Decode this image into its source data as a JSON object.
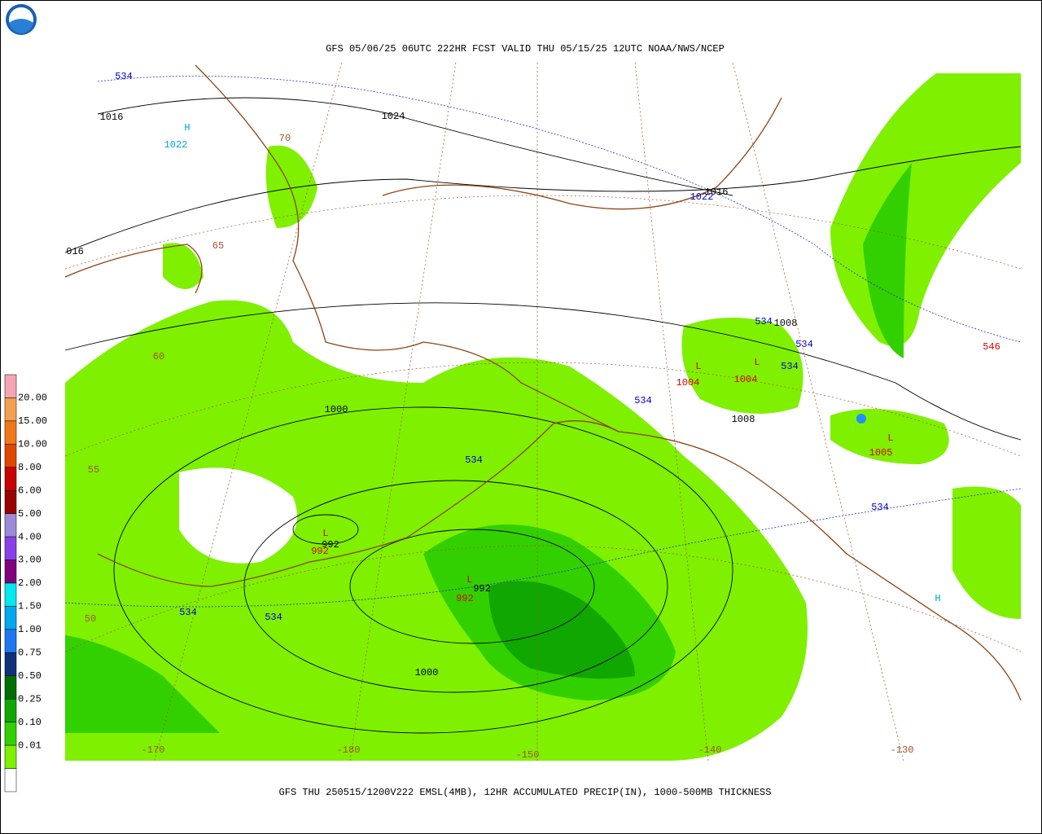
{
  "header": {
    "title": "GFS 05/06/25 06UTC 222HR FCST VALID THU 05/15/25 12UTC NOAA/NWS/NCEP"
  },
  "footer": {
    "caption": "GFS THU 250515/1200V222 EMSL(4MB), 12HR ACCUMULATED PRECIP(IN), 1000-500MB THICKNESS"
  },
  "legend": {
    "labels": [
      "20.00",
      "15.00",
      "10.00",
      "8.00",
      "6.00",
      "5.00",
      "4.00",
      "3.00",
      "2.00",
      "1.50",
      "1.00",
      "0.75",
      "0.50",
      "0.25",
      "0.10",
      "0.01"
    ],
    "colors": [
      "#f4a6b4",
      "#f4a050",
      "#f07818",
      "#e04800",
      "#c80000",
      "#9a0000",
      "#9a8ad8",
      "#8a40e8",
      "#800080",
      "#00e8f0",
      "#00a8f0",
      "#1e78f0",
      "#10307a",
      "#006e00",
      "#10a800",
      "#33d000",
      "#7ff000",
      "#ffffff"
    ]
  },
  "map_labels": [
    {
      "text": "534",
      "color": "#0000cc"
    },
    {
      "text": "1016",
      "color": "#000000"
    },
    {
      "text": "H",
      "color": "#00a0e0"
    },
    {
      "text": "1022",
      "color": "#00a0e0"
    },
    {
      "text": "1024",
      "color": "#000000"
    },
    {
      "text": "70",
      "color": "#a0522d"
    },
    {
      "text": "1016",
      "color": "#000000"
    },
    {
      "text": "1022",
      "color": "#0000cc"
    },
    {
      "text": "016",
      "color": "#000000"
    },
    {
      "text": "65",
      "color": "#a0522d"
    },
    {
      "text": "534",
      "color": "#0000cc"
    },
    {
      "text": "1008",
      "color": "#000000"
    },
    {
      "text": "534",
      "color": "#0000cc"
    },
    {
      "text": "546",
      "color": "#dd0000"
    },
    {
      "text": "L",
      "color": "#dd0000"
    },
    {
      "text": "1004",
      "color": "#dd0000"
    },
    {
      "text": "L",
      "color": "#dd0000"
    },
    {
      "text": "1004",
      "color": "#dd0000"
    },
    {
      "text": "534",
      "color": "#0000cc"
    },
    {
      "text": "60",
      "color": "#a0522d"
    },
    {
      "text": "534",
      "color": "#0000cc"
    },
    {
      "text": "1000",
      "color": "#000000"
    },
    {
      "text": "1008",
      "color": "#000000"
    },
    {
      "text": "L",
      "color": "#dd0000"
    },
    {
      "text": "1005",
      "color": "#dd0000"
    },
    {
      "text": "534",
      "color": "#0000cc"
    },
    {
      "text": "55",
      "color": "#a0522d"
    },
    {
      "text": "534",
      "color": "#0000cc"
    },
    {
      "text": "L",
      "color": "#dd0000"
    },
    {
      "text": "992",
      "color": "#000000"
    },
    {
      "text": "992",
      "color": "#dd0000"
    },
    {
      "text": "L",
      "color": "#dd0000"
    },
    {
      "text": "992",
      "color": "#000000"
    },
    {
      "text": "992",
      "color": "#dd0000"
    },
    {
      "text": "534",
      "color": "#0000cc"
    },
    {
      "text": "534",
      "color": "#0000cc"
    },
    {
      "text": "H",
      "color": "#00a0e0"
    },
    {
      "text": "50",
      "color": "#a0522d"
    },
    {
      "text": "1000",
      "color": "#000000"
    },
    {
      "text": "-170",
      "color": "#a0522d"
    },
    {
      "text": "-180",
      "color": "#a0522d"
    },
    {
      "text": "-150",
      "color": "#a0522d"
    },
    {
      "text": "-140",
      "color": "#a0522d"
    },
    {
      "text": "-130",
      "color": "#a0522d"
    }
  ]
}
